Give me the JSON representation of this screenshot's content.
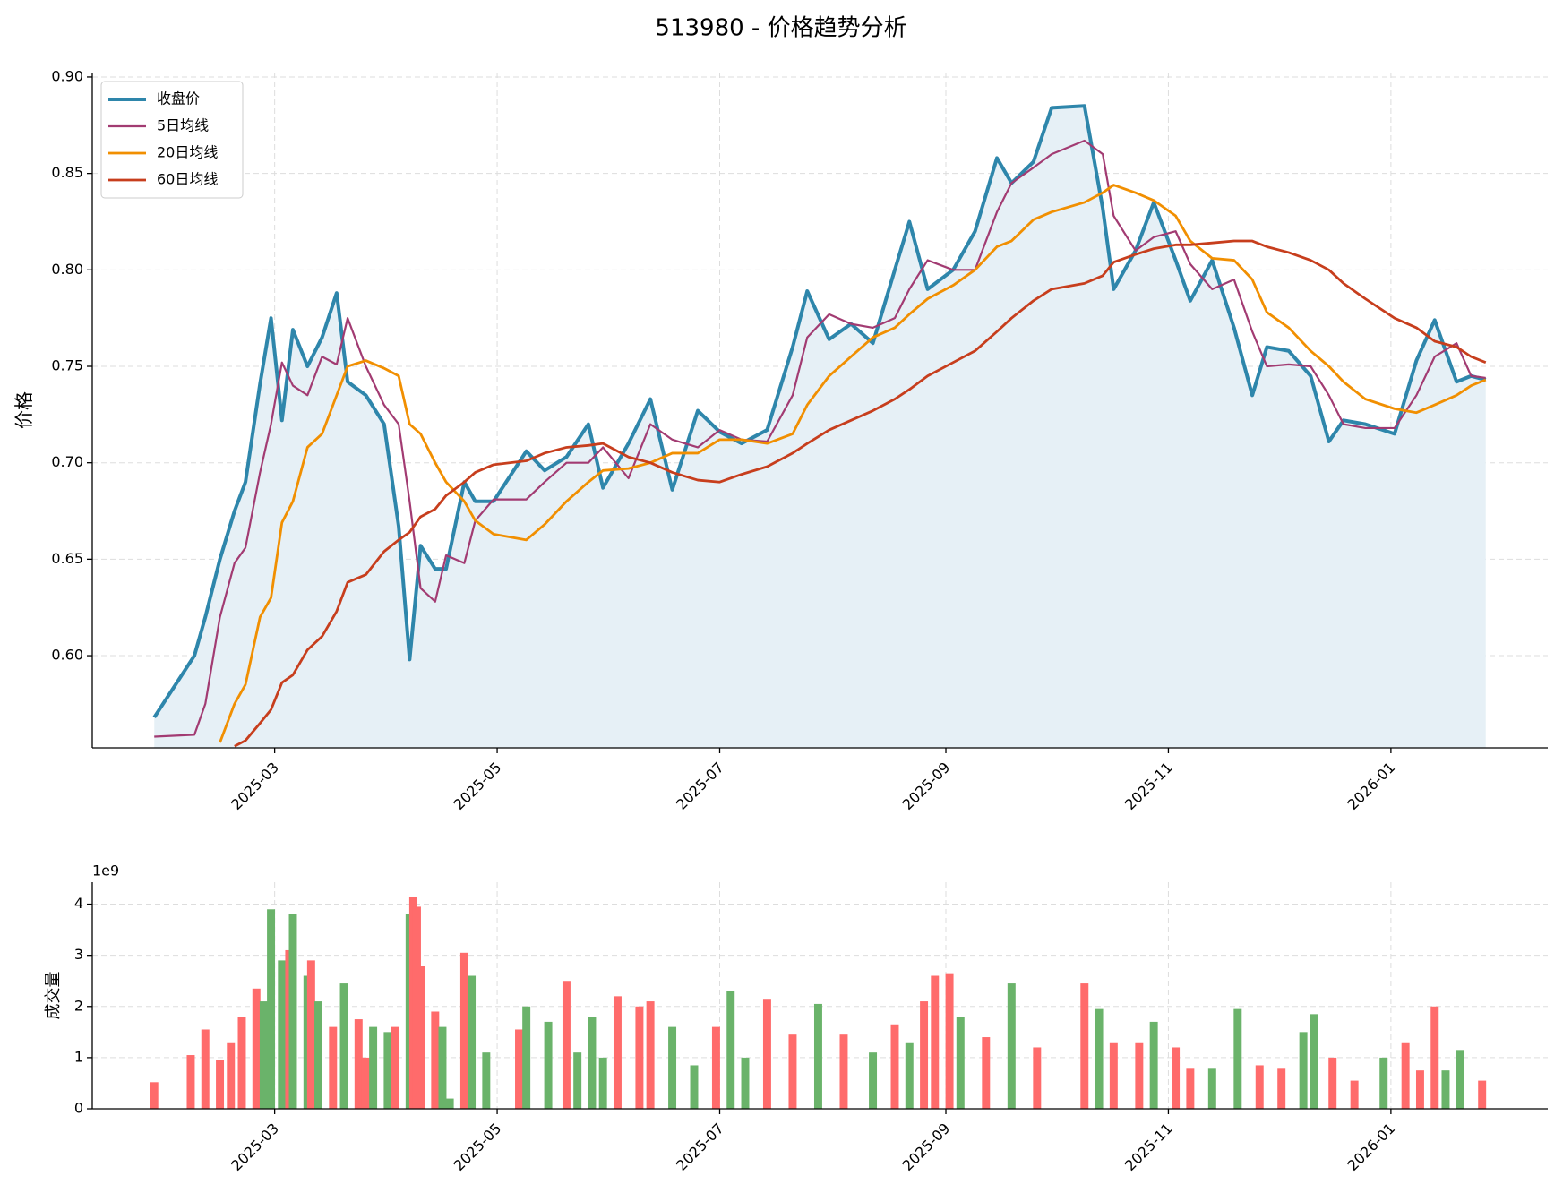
{
  "chart_data": [
    {
      "type": "line",
      "title": "513980 - 价格趋势分析",
      "ylabel": "价格",
      "legend": "upper left",
      "grid": true,
      "fill_under": "chart_data.0.series.0",
      "fill_color": "#e6f0f6",
      "xlim": [
        "2025-01-10",
        "2026-02-13"
      ],
      "xticks": [
        {
          "value": "2025-03-01",
          "label": "2025-03"
        },
        {
          "value": "2025-05-01",
          "label": "2025-05"
        },
        {
          "value": "2025-07-01",
          "label": "2025-07"
        },
        {
          "value": "2025-09-01",
          "label": "2025-09"
        },
        {
          "value": "2025-11-01",
          "label": "2025-11"
        },
        {
          "value": "2026-01-01",
          "label": "2026-01"
        }
      ],
      "ylim": [
        0.5522,
        0.9023
      ],
      "yticks": [
        {
          "value": 0.6,
          "label": "0.60"
        },
        {
          "value": 0.65,
          "label": "0.65"
        },
        {
          "value": 0.7,
          "label": "0.70"
        },
        {
          "value": 0.75,
          "label": "0.75"
        },
        {
          "value": 0.8,
          "label": "0.80"
        },
        {
          "value": 0.85,
          "label": "0.85"
        },
        {
          "value": 0.9,
          "label": "0.90"
        }
      ],
      "x": [
        "2025-01-27",
        "2025-02-07",
        "2025-02-10",
        "2025-02-14",
        "2025-02-18",
        "2025-02-21",
        "2025-02-25",
        "2025-02-28",
        "2025-03-03",
        "2025-03-06",
        "2025-03-10",
        "2025-03-14",
        "2025-03-18",
        "2025-03-21",
        "2025-03-26",
        "2025-03-31",
        "2025-04-04",
        "2025-04-07",
        "2025-04-10",
        "2025-04-14",
        "2025-04-17",
        "2025-04-22",
        "2025-04-25",
        "2025-04-30",
        "2025-05-09",
        "2025-05-14",
        "2025-05-20",
        "2025-05-26",
        "2025-05-30",
        "2025-06-06",
        "2025-06-12",
        "2025-06-18",
        "2025-06-25",
        "2025-07-01",
        "2025-07-07",
        "2025-07-14",
        "2025-07-21",
        "2025-07-25",
        "2025-07-31",
        "2025-08-06",
        "2025-08-12",
        "2025-08-18",
        "2025-08-22",
        "2025-08-27",
        "2025-09-03",
        "2025-09-09",
        "2025-09-15",
        "2025-09-19",
        "2025-09-25",
        "2025-09-30",
        "2025-10-09",
        "2025-10-14",
        "2025-10-17",
        "2025-10-23",
        "2025-10-28",
        "2025-11-03",
        "2025-11-07",
        "2025-11-13",
        "2025-11-19",
        "2025-11-24",
        "2025-11-28",
        "2025-12-04",
        "2025-12-10",
        "2025-12-15",
        "2025-12-19",
        "2025-12-25",
        "2026-01-02",
        "2026-01-08",
        "2026-01-13",
        "2026-01-19",
        "2026-01-23",
        "2026-01-27"
      ],
      "series": [
        {
          "name": "收盘价",
          "color": "#2e86ab",
          "values": [
            0.568,
            0.6,
            0.62,
            0.65,
            0.675,
            0.69,
            0.741,
            0.775,
            0.722,
            0.769,
            0.75,
            0.765,
            0.788,
            0.742,
            0.735,
            0.72,
            0.667,
            0.598,
            0.657,
            0.645,
            0.645,
            0.69,
            0.68,
            0.68,
            0.706,
            0.696,
            0.703,
            0.72,
            0.687,
            0.71,
            0.733,
            0.686,
            0.727,
            0.716,
            0.71,
            0.717,
            0.76,
            0.789,
            0.764,
            0.772,
            0.762,
            0.8,
            0.825,
            0.79,
            0.8,
            0.82,
            0.858,
            0.845,
            0.856,
            0.884,
            0.885,
            0.832,
            0.79,
            0.81,
            0.835,
            0.805,
            0.784,
            0.805,
            0.77,
            0.735,
            0.76,
            0.758,
            0.745,
            0.711,
            0.722,
            0.72,
            0.715,
            0.753,
            0.774,
            0.742,
            0.745,
            0.743
          ]
        },
        {
          "name": "5日均线",
          "color": "#a23b72",
          "values": [
            0.558,
            0.559,
            0.575,
            0.62,
            0.648,
            0.656,
            0.695,
            0.72,
            0.752,
            0.74,
            0.735,
            0.755,
            0.751,
            0.775,
            0.75,
            0.73,
            0.72,
            0.68,
            0.635,
            0.628,
            0.652,
            0.648,
            0.67,
            0.681,
            0.681,
            0.69,
            0.7,
            0.7,
            0.708,
            0.692,
            0.72,
            0.712,
            0.708,
            0.717,
            0.712,
            0.711,
            0.735,
            0.765,
            0.777,
            0.772,
            0.77,
            0.775,
            0.79,
            0.805,
            0.8,
            0.8,
            0.83,
            0.845,
            0.853,
            0.86,
            0.867,
            0.86,
            0.828,
            0.81,
            0.817,
            0.82,
            0.803,
            0.79,
            0.795,
            0.768,
            0.75,
            0.751,
            0.75,
            0.735,
            0.72,
            0.718,
            0.718,
            0.735,
            0.755,
            0.762,
            0.745,
            0.744
          ]
        },
        {
          "name": "20日均线",
          "color": "#f18f01",
          "values": [
            null,
            null,
            null,
            0.555,
            0.575,
            0.585,
            0.62,
            0.63,
            0.669,
            0.68,
            0.708,
            0.715,
            0.735,
            0.75,
            0.753,
            0.749,
            0.745,
            0.72,
            0.715,
            0.7,
            0.69,
            0.68,
            0.67,
            0.663,
            0.66,
            0.668,
            0.68,
            0.69,
            0.696,
            0.697,
            0.7,
            0.705,
            0.705,
            0.712,
            0.712,
            0.71,
            0.715,
            0.73,
            0.745,
            0.755,
            0.765,
            0.77,
            0.777,
            0.785,
            0.792,
            0.8,
            0.812,
            0.815,
            0.826,
            0.83,
            0.835,
            0.84,
            0.844,
            0.84,
            0.836,
            0.828,
            0.815,
            0.806,
            0.805,
            0.795,
            0.778,
            0.77,
            0.758,
            0.75,
            0.742,
            0.733,
            0.728,
            0.726,
            0.73,
            0.735,
            0.74,
            0.743
          ]
        },
        {
          "name": "60日均线",
          "color": "#c73e1d",
          "values": [
            null,
            null,
            null,
            null,
            0.553,
            0.556,
            0.565,
            0.572,
            0.586,
            0.59,
            0.603,
            0.61,
            0.623,
            0.638,
            0.642,
            0.654,
            0.66,
            0.664,
            0.672,
            0.676,
            0.683,
            0.69,
            0.695,
            0.699,
            0.701,
            0.705,
            0.708,
            0.709,
            0.71,
            0.703,
            0.7,
            0.695,
            0.691,
            0.69,
            0.694,
            0.698,
            0.705,
            0.71,
            0.717,
            0.722,
            0.727,
            0.733,
            0.738,
            0.745,
            0.752,
            0.758,
            0.768,
            0.775,
            0.784,
            0.79,
            0.793,
            0.797,
            0.804,
            0.808,
            0.811,
            0.813,
            0.813,
            0.814,
            0.815,
            0.815,
            0.812,
            0.809,
            0.805,
            0.8,
            0.793,
            0.785,
            0.775,
            0.77,
            0.763,
            0.76,
            0.755,
            0.752
          ]
        }
      ]
    },
    {
      "type": "bar",
      "ylabel": "成交量",
      "offset_label": "1e9",
      "grid": true,
      "xlim": [
        "2025-01-10",
        "2026-02-13"
      ],
      "xticks": [
        {
          "value": "2025-03-01",
          "label": "2025-03"
        },
        {
          "value": "2025-05-01",
          "label": "2025-05"
        },
        {
          "value": "2025-07-01",
          "label": "2025-07"
        },
        {
          "value": "2025-09-01",
          "label": "2025-09"
        },
        {
          "value": "2025-11-01",
          "label": "2025-11"
        },
        {
          "value": "2026-01-01",
          "label": "2026-01"
        }
      ],
      "ylim": [
        0,
        4430000000
      ],
      "yticks": [
        0,
        {
          "value": 1000000000,
          "label": "1"
        },
        {
          "value": 2000000000,
          "label": "2"
        },
        {
          "value": 3000000000,
          "label": "3"
        },
        {
          "value": 4000000000,
          "label": "4"
        }
      ],
      "x": [
        "2025-01-27",
        "2025-02-06",
        "2025-02-10",
        "2025-02-14",
        "2025-02-17",
        "2025-02-20",
        "2025-02-24",
        "2025-02-26",
        "2025-02-28",
        "2025-03-03",
        "2025-03-05",
        "2025-03-06",
        "2025-03-10",
        "2025-03-11",
        "2025-03-13",
        "2025-03-17",
        "2025-03-20",
        "2025-03-24",
        "2025-03-26",
        "2025-03-28",
        "2025-04-01",
        "2025-04-03",
        "2025-04-07",
        "2025-04-08",
        "2025-04-09",
        "2025-04-10",
        "2025-04-14",
        "2025-04-16",
        "2025-04-18",
        "2025-04-22",
        "2025-04-24",
        "2025-04-28",
        "2025-05-07",
        "2025-05-09",
        "2025-05-15",
        "2025-05-20",
        "2025-05-23",
        "2025-05-27",
        "2025-05-30",
        "2025-06-03",
        "2025-06-09",
        "2025-06-12",
        "2025-06-18",
        "2025-06-24",
        "2025-06-30",
        "2025-07-04",
        "2025-07-08",
        "2025-07-14",
        "2025-07-21",
        "2025-07-28",
        "2025-08-04",
        "2025-08-12",
        "2025-08-18",
        "2025-08-22",
        "2025-08-26",
        "2025-08-29",
        "2025-09-02",
        "2025-09-05",
        "2025-09-12",
        "2025-09-19",
        "2025-09-26",
        "2025-10-09",
        "2025-10-13",
        "2025-10-17",
        "2025-10-24",
        "2025-10-28",
        "2025-11-03",
        "2025-11-07",
        "2025-11-13",
        "2025-11-20",
        "2025-11-26",
        "2025-12-02",
        "2025-12-08",
        "2025-12-11",
        "2025-12-16",
        "2025-12-22",
        "2025-12-30",
        "2026-01-05",
        "2026-01-09",
        "2026-01-13",
        "2026-01-16",
        "2026-01-20",
        "2026-01-26"
      ],
      "values": [
        520000000,
        1050000000,
        1550000000,
        950000000,
        1300000000,
        1800000000,
        2350000000,
        2100000000,
        3900000000,
        2900000000,
        3100000000,
        3800000000,
        2600000000,
        2900000000,
        2100000000,
        1600000000,
        2450000000,
        1750000000,
        1000000000,
        1600000000,
        1500000000,
        1600000000,
        3800000000,
        4150000000,
        3950000000,
        2800000000,
        1900000000,
        1600000000,
        200000000,
        3050000000,
        2600000000,
        1100000000,
        1550000000,
        2000000000,
        1700000000,
        2500000000,
        1100000000,
        1800000000,
        1000000000,
        2200000000,
        2000000000,
        2100000000,
        1600000000,
        850000000,
        1600000000,
        2300000000,
        1000000000,
        2150000000,
        1450000000,
        2050000000,
        1450000000,
        1100000000,
        1650000000,
        1300000000,
        2100000000,
        2600000000,
        2650000000,
        1800000000,
        1400000000,
        2450000000,
        1200000000,
        2450000000,
        1950000000,
        1300000000,
        1300000000,
        1700000000,
        1200000000,
        800000000,
        800000000,
        1950000000,
        850000000,
        800000000,
        1500000000,
        1850000000,
        1000000000,
        550000000,
        1000000000,
        1300000000,
        750000000,
        2000000000,
        750000000,
        1150000000,
        550000000
      ],
      "colors": [
        "#ff6b6b",
        "#ff6b6b",
        "#ff6b6b",
        "#ff6b6b",
        "#ff6b6b",
        "#ff6b6b",
        "#ff6b6b",
        "#6ab36a",
        "#6ab36a",
        "#6ab36a",
        "#ff6b6b",
        "#6ab36a",
        "#6ab36a",
        "#ff6b6b",
        "#6ab36a",
        "#ff6b6b",
        "#6ab36a",
        "#ff6b6b",
        "#ff6b6b",
        "#6ab36a",
        "#6ab36a",
        "#ff6b6b",
        "#6ab36a",
        "#ff6b6b",
        "#ff6b6b",
        "#ff6b6b",
        "#ff6b6b",
        "#6ab36a",
        "#6ab36a",
        "#ff6b6b",
        "#6ab36a",
        "#6ab36a",
        "#ff6b6b",
        "#6ab36a",
        "#6ab36a",
        "#ff6b6b",
        "#6ab36a",
        "#6ab36a",
        "#6ab36a",
        "#ff6b6b",
        "#ff6b6b",
        "#ff6b6b",
        "#6ab36a",
        "#6ab36a",
        "#ff6b6b",
        "#6ab36a",
        "#6ab36a",
        "#ff6b6b",
        "#ff6b6b",
        "#6ab36a",
        "#ff6b6b",
        "#6ab36a",
        "#ff6b6b",
        "#6ab36a",
        "#ff6b6b",
        "#ff6b6b",
        "#ff6b6b",
        "#6ab36a",
        "#ff6b6b",
        "#6ab36a",
        "#ff6b6b",
        "#ff6b6b",
        "#6ab36a",
        "#ff6b6b",
        "#ff6b6b",
        "#6ab36a",
        "#ff6b6b",
        "#ff6b6b",
        "#6ab36a",
        "#6ab36a",
        "#ff6b6b",
        "#ff6b6b",
        "#6ab36a",
        "#6ab36a",
        "#ff6b6b",
        "#ff6b6b",
        "#6ab36a",
        "#ff6b6b",
        "#ff6b6b",
        "#ff6b6b",
        "#6ab36a",
        "#6ab36a",
        "#ff6b6b"
      ]
    }
  ]
}
